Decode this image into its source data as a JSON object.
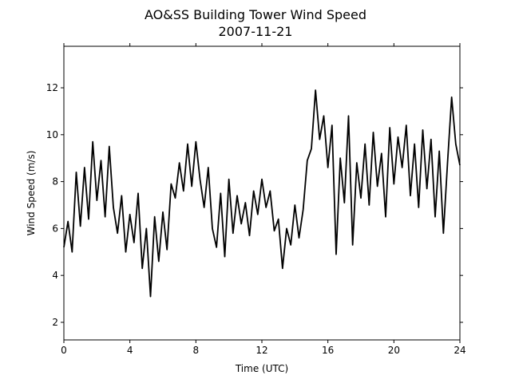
{
  "chart_data": {
    "type": "line",
    "title": "AO&SS Building Tower Wind Speed",
    "subtitle": "2007-11-21",
    "x_label": "Time (UTC)",
    "y_label": "Wind Speed (m/s)",
    "xlim": [
      0,
      24
    ],
    "xticks": [
      0,
      4,
      8,
      12,
      16,
      20,
      24
    ],
    "ylim": [
      1.25,
      13.77
    ],
    "yticks": [
      2,
      4,
      6,
      8,
      10,
      12
    ],
    "x": [
      0,
      0.25,
      0.5,
      0.75,
      1,
      1.25,
      1.5,
      1.75,
      2,
      2.25,
      2.5,
      2.75,
      3,
      3.25,
      3.5,
      3.75,
      4,
      4.25,
      4.5,
      4.75,
      5,
      5.25,
      5.5,
      5.75,
      6,
      6.25,
      6.5,
      6.75,
      7,
      7.25,
      7.5,
      7.75,
      8,
      8.25,
      8.5,
      8.75,
      9,
      9.25,
      9.5,
      9.75,
      10,
      10.25,
      10.5,
      10.75,
      11,
      11.25,
      11.5,
      11.75,
      12,
      12.25,
      12.5,
      12.75,
      13,
      13.25,
      13.5,
      13.75,
      14,
      14.25,
      14.5,
      14.75,
      15,
      15.25,
      15.5,
      15.75,
      16,
      16.25,
      16.5,
      16.75,
      17,
      17.25,
      17.5,
      17.75,
      18,
      18.25,
      18.5,
      18.75,
      19,
      19.25,
      19.5,
      19.75,
      20,
      20.25,
      20.5,
      20.75,
      21,
      21.25,
      21.5,
      21.75,
      22,
      22.25,
      22.5,
      22.75,
      23,
      23.25,
      23.5,
      23.75,
      24
    ],
    "series": [
      {
        "color": "#000000",
        "values": [
          5.2,
          6.3,
          5.0,
          8.4,
          6.1,
          8.6,
          6.4,
          9.7,
          7.2,
          8.9,
          6.5,
          9.5,
          6.9,
          5.8,
          7.4,
          5.0,
          6.6,
          5.4,
          7.5,
          4.3,
          6.0,
          3.1,
          6.5,
          4.6,
          6.7,
          5.1,
          7.9,
          7.3,
          8.8,
          7.6,
          9.6,
          7.8,
          9.7,
          8.1,
          6.9,
          8.6,
          6.0,
          5.2,
          7.5,
          4.8,
          8.1,
          5.8,
          7.4,
          6.2,
          7.1,
          5.7,
          7.6,
          6.6,
          8.1,
          6.9,
          7.6,
          5.9,
          6.4,
          4.3,
          6.0,
          5.3,
          7.0,
          5.6,
          6.8,
          8.9,
          9.4,
          11.9,
          9.8,
          10.8,
          8.6,
          10.4,
          4.9,
          9.0,
          7.1,
          10.8,
          5.3,
          8.8,
          7.3,
          9.6,
          7.0,
          10.1,
          7.8,
          9.2,
          6.5,
          10.3,
          7.9,
          9.9,
          8.6,
          10.4,
          7.4,
          9.6,
          6.9,
          10.2,
          7.7,
          9.8,
          6.5,
          9.3,
          5.8,
          8.8,
          11.6,
          9.6,
          8.7
        ]
      }
    ]
  }
}
